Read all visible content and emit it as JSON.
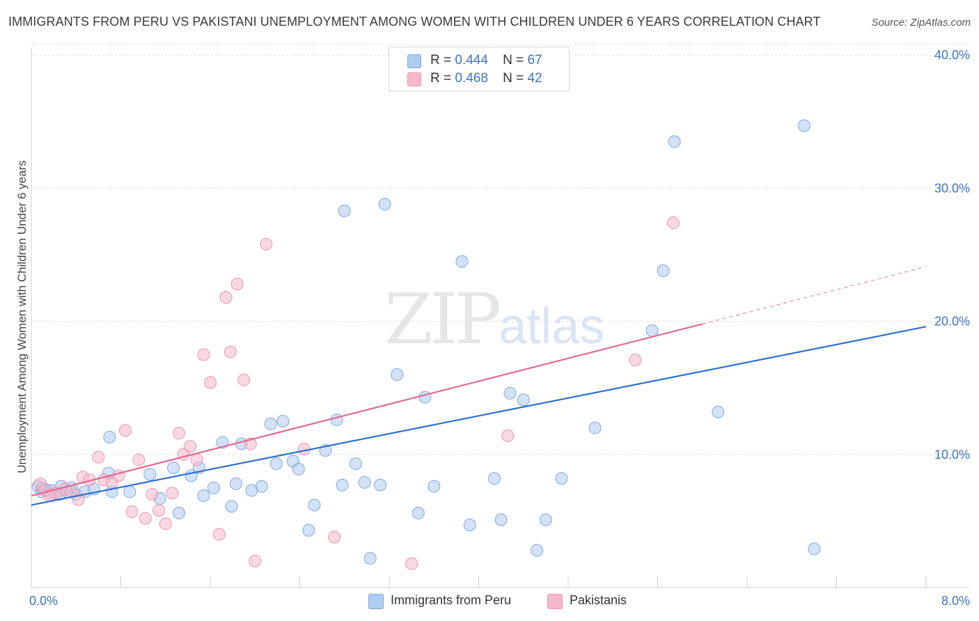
{
  "title": "IMMIGRANTS FROM PERU VS PAKISTANI UNEMPLOYMENT AMONG WOMEN WITH CHILDREN UNDER 6 YEARS CORRELATION CHART",
  "source": "Source: ZipAtlas.com",
  "watermark": {
    "zip": "ZIP",
    "atlas": "atlas"
  },
  "legend_top": [
    {
      "r_label": "R =",
      "r_value": "0.444",
      "n_label": "N =",
      "n_value": "67",
      "color": "#aecbf0"
    },
    {
      "r_label": "R =",
      "r_value": "0.468",
      "n_label": "N =",
      "n_value": "42",
      "color": "#f6b8cb"
    }
  ],
  "chart_data": {
    "type": "scatter",
    "title": "IMMIGRANTS FROM PERU VS PAKISTANI UNEMPLOYMENT AMONG WOMEN WITH CHILDREN UNDER 6 YEARS CORRELATION CHART",
    "xlabel": "",
    "ylabel": "Unemployment Among Women with Children Under 6 years",
    "xlim": [
      0,
      8
    ],
    "ylim": [
      0,
      41
    ],
    "x_tick_labels": [
      "0.0%",
      "8.0%"
    ],
    "y_ticks": [
      10,
      20,
      30,
      40
    ],
    "y_tick_labels": [
      "10.0%",
      "20.0%",
      "30.0%",
      "40.0%"
    ],
    "grid": true,
    "legend_position": "top-center",
    "series": [
      {
        "name": "Immigrants from Peru",
        "color": "#aecbf0",
        "stroke": "#7ea7df",
        "trend_color": "#2f6fd0",
        "trend": {
          "x0": 0,
          "y0": 6.2,
          "x1": 8,
          "y1": 19.6
        },
        "points": [
          [
            0.06,
            7.6
          ],
          [
            0.09,
            7.2
          ],
          [
            0.1,
            7.5
          ],
          [
            0.14,
            7.3
          ],
          [
            0.18,
            7.3
          ],
          [
            0.22,
            7.1
          ],
          [
            0.27,
            7.6
          ],
          [
            0.36,
            7.5
          ],
          [
            0.4,
            7.0
          ],
          [
            0.7,
            11.3
          ],
          [
            0.72,
            7.2
          ],
          [
            0.88,
            7.2
          ],
          [
            0.69,
            8.6
          ],
          [
            1.06,
            8.5
          ],
          [
            1.15,
            6.7
          ],
          [
            1.27,
            9.0
          ],
          [
            1.32,
            5.6
          ],
          [
            1.43,
            8.4
          ],
          [
            1.5,
            9.0
          ],
          [
            1.54,
            6.9
          ],
          [
            1.63,
            7.5
          ],
          [
            1.71,
            10.9
          ],
          [
            1.79,
            6.1
          ],
          [
            1.83,
            7.8
          ],
          [
            1.88,
            10.8
          ],
          [
            1.97,
            7.3
          ],
          [
            2.06,
            7.6
          ],
          [
            2.14,
            12.3
          ],
          [
            2.19,
            9.3
          ],
          [
            2.25,
            12.5
          ],
          [
            2.34,
            9.5
          ],
          [
            2.39,
            8.9
          ],
          [
            2.53,
            6.2
          ],
          [
            2.48,
            4.3
          ],
          [
            2.63,
            10.3
          ],
          [
            2.73,
            12.6
          ],
          [
            2.78,
            7.7
          ],
          [
            2.9,
            9.3
          ],
          [
            2.98,
            7.9
          ],
          [
            3.03,
            2.2
          ],
          [
            3.12,
            7.7
          ],
          [
            3.16,
            28.8
          ],
          [
            2.8,
            28.3
          ],
          [
            3.27,
            16.0
          ],
          [
            3.46,
            5.6
          ],
          [
            3.52,
            14.3
          ],
          [
            3.6,
            7.6
          ],
          [
            3.92,
            4.7
          ],
          [
            3.85,
            24.5
          ],
          [
            4.14,
            8.2
          ],
          [
            4.2,
            5.1
          ],
          [
            4.28,
            14.6
          ],
          [
            4.4,
            14.1
          ],
          [
            4.52,
            2.8
          ],
          [
            4.6,
            5.1
          ],
          [
            4.74,
            8.2
          ],
          [
            5.04,
            12.0
          ],
          [
            5.55,
            19.3
          ],
          [
            5.65,
            23.8
          ],
          [
            5.75,
            33.5
          ],
          [
            6.14,
            13.2
          ],
          [
            6.91,
            34.7
          ],
          [
            7.0,
            2.9
          ],
          [
            0.48,
            7.2
          ],
          [
            0.56,
            7.4
          ],
          [
            0.32,
            7.2
          ],
          [
            0.25,
            7.0
          ]
        ]
      },
      {
        "name": "Pakistanis",
        "color": "#f6b8cb",
        "stroke": "#ec94ae",
        "trend_color": "#e06a93",
        "trend": {
          "x0": 0,
          "y0": 6.9,
          "x1": 6.0,
          "y1": 19.8
        },
        "trend_dashed_to": {
          "x": 8,
          "y": 24.1
        },
        "points": [
          [
            0.08,
            7.8
          ],
          [
            0.12,
            7.3
          ],
          [
            0.18,
            7.0
          ],
          [
            0.22,
            7.1
          ],
          [
            0.3,
            7.4
          ],
          [
            0.36,
            7.2
          ],
          [
            0.42,
            6.6
          ],
          [
            0.46,
            8.3
          ],
          [
            0.52,
            8.1
          ],
          [
            0.6,
            9.8
          ],
          [
            0.65,
            8.1
          ],
          [
            0.72,
            7.9
          ],
          [
            0.78,
            8.4
          ],
          [
            0.84,
            11.8
          ],
          [
            0.9,
            5.7
          ],
          [
            0.96,
            9.6
          ],
          [
            1.02,
            5.2
          ],
          [
            1.08,
            7.0
          ],
          [
            1.14,
            5.8
          ],
          [
            1.2,
            4.8
          ],
          [
            1.26,
            7.1
          ],
          [
            1.32,
            11.6
          ],
          [
            1.36,
            10.0
          ],
          [
            1.42,
            10.6
          ],
          [
            1.48,
            9.6
          ],
          [
            1.54,
            17.5
          ],
          [
            1.6,
            15.4
          ],
          [
            1.68,
            4.0
          ],
          [
            1.74,
            21.8
          ],
          [
            1.78,
            17.7
          ],
          [
            1.84,
            22.8
          ],
          [
            1.9,
            15.6
          ],
          [
            1.96,
            10.8
          ],
          [
            2.0,
            2.0
          ],
          [
            2.1,
            25.8
          ],
          [
            2.44,
            10.4
          ],
          [
            2.71,
            3.8
          ],
          [
            3.4,
            1.8
          ],
          [
            4.26,
            11.4
          ],
          [
            5.4,
            17.1
          ],
          [
            5.74,
            27.4
          ],
          [
            0.16,
            6.9
          ]
        ]
      }
    ]
  }
}
